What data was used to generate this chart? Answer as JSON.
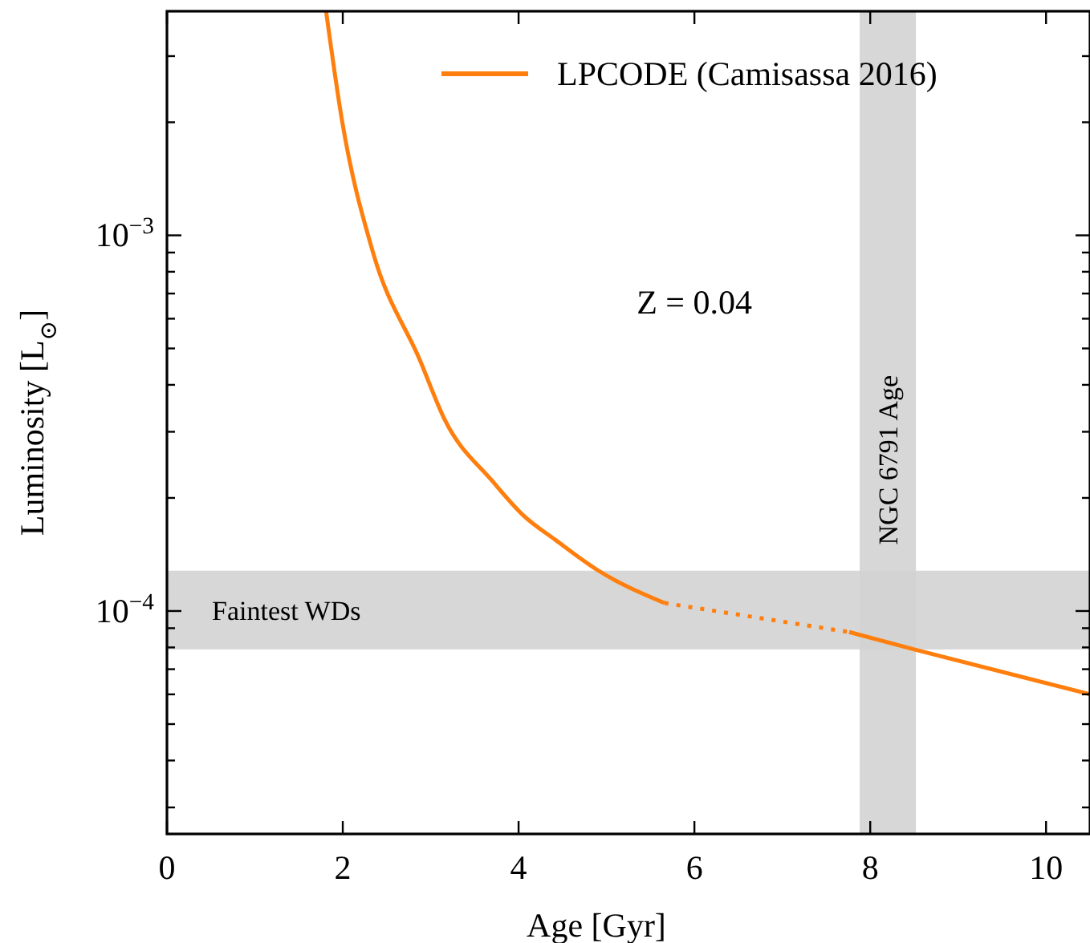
{
  "chart_data": {
    "type": "line",
    "xlabel": "Age [Gyr]",
    "ylabel": "Luminosity [L$_{⊙}$]",
    "log": "y",
    "grid": false,
    "legend": "top right",
    "xlim": [
      0,
      10.5
    ],
    "xticks": [
      0,
      2,
      4,
      6,
      8,
      10
    ],
    "ylim": [
      2.55e-05,
      0.00395
    ],
    "yticks": [
      {
        "value": 3e-05,
        "label": null
      },
      {
        "value": 4e-05,
        "label": null
      },
      {
        "value": 5e-05,
        "label": null
      },
      {
        "value": 6e-05,
        "label": null
      },
      {
        "value": 7e-05,
        "label": null
      },
      {
        "value": 8e-05,
        "label": null
      },
      {
        "value": 9e-05,
        "label": null
      },
      {
        "value": 0.0001,
        "label": "10$^{−4}$"
      },
      {
        "value": 0.0002,
        "label": null
      },
      {
        "value": 0.0003,
        "label": null
      },
      {
        "value": 0.0004,
        "label": null
      },
      {
        "value": 0.0005,
        "label": null
      },
      {
        "value": 0.0006,
        "label": null
      },
      {
        "value": 0.0007,
        "label": null
      },
      {
        "value": 0.0008,
        "label": null
      },
      {
        "value": 0.0009,
        "label": null
      },
      {
        "value": 0.001,
        "label": "10$^{−3}$"
      },
      {
        "value": 0.002,
        "label": null
      },
      {
        "value": 0.003,
        "label": null
      }
    ],
    "series": [
      {
        "name": "LPCODE (Camisassa 2016)",
        "color": "#ff7f0e",
        "line_style": "solid",
        "x": [
          1.81,
          1.99,
          2.34,
          2.88,
          3.16,
          3.7,
          4.05,
          4.43,
          4.91,
          5.66
        ],
        "values": [
          0.00395,
          0.00203,
          0.000907,
          0.000464,
          0.000323,
          0.000222,
          0.00018,
          0.000154,
          0.000128,
          0.000105
        ]
      },
      {
        "color": "#ff7f0e",
        "line_style": "dotted",
        "x": [
          5.66,
          7.76
        ],
        "values": [
          0.000105,
          8.79e-05
        ]
      },
      {
        "color": "#ff7f0e",
        "line_style": "solid",
        "x": [
          7.76,
          8.5,
          10.5
        ],
        "values": [
          8.79e-05,
          7.9e-05,
          6e-05
        ]
      }
    ],
    "bands": [
      {
        "axis": "y",
        "from": 7.9e-05,
        "to": 0.000128,
        "label": "Faintest WDs",
        "color": "#d3d3d3"
      },
      {
        "axis": "x",
        "from": 7.88,
        "to": 8.52,
        "label": "NGC 6791 Age",
        "color": "#d3d3d3"
      }
    ],
    "annotations": [
      "Z = 0.04"
    ]
  }
}
